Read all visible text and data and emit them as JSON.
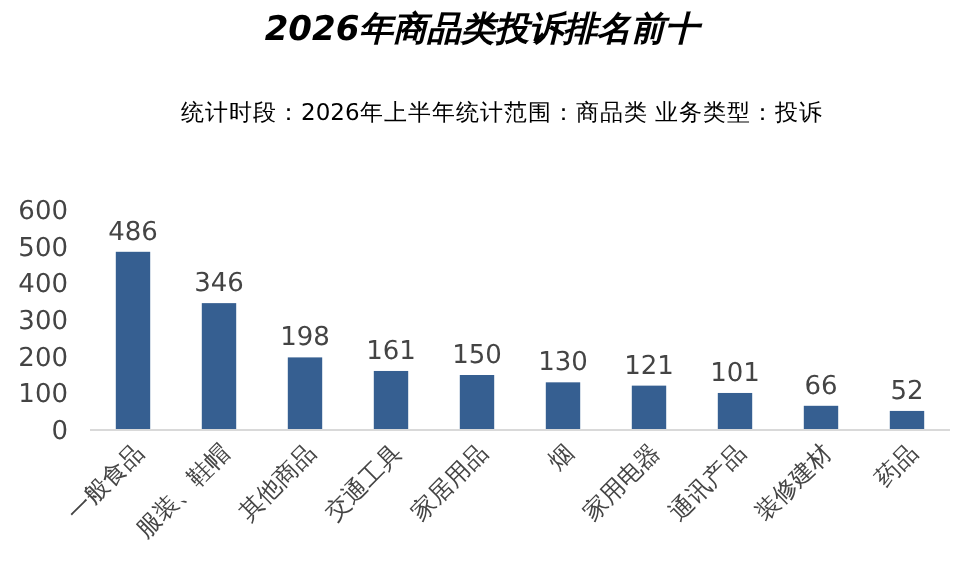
{
  "chart_data": {
    "type": "bar",
    "title": "2026年商品类投诉排名前十",
    "subtitle": "统计时段：2026年上半年统计范围：商品类  业务类型：投诉",
    "categories": [
      "一般食品",
      "服装、鞋帽",
      "其他商品",
      "交通工具",
      "家居用品",
      "烟",
      "家用电器",
      "通讯产品",
      "装修建材",
      "药品"
    ],
    "values": [
      486,
      346,
      198,
      161,
      150,
      130,
      121,
      101,
      66,
      52
    ],
    "color": "#365f91",
    "ylim": [
      0,
      600
    ],
    "yticks": [
      0,
      100,
      200,
      300,
      400,
      500,
      600
    ],
    "grid": false,
    "data_labels": true
  }
}
